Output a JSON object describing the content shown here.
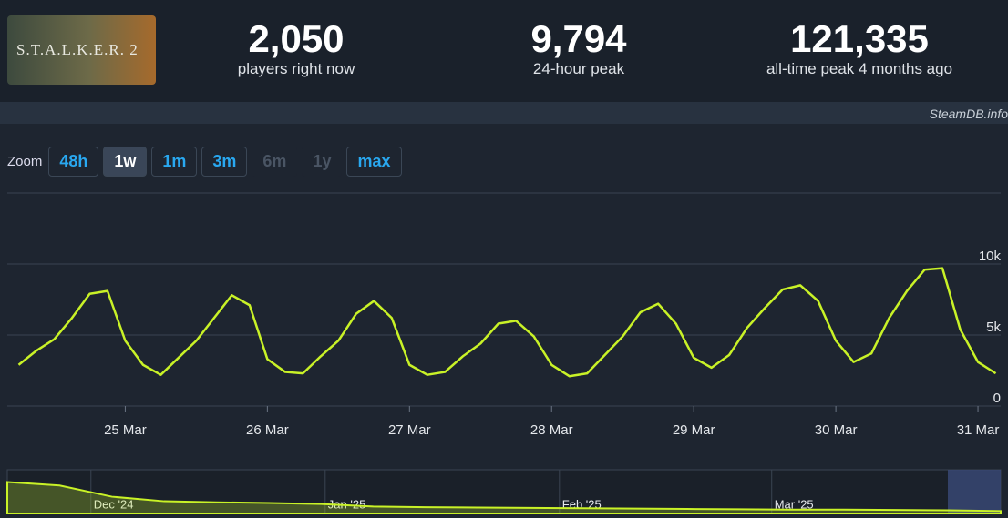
{
  "header": {
    "logo": "S.T.A.L.K.E.R. 2",
    "stats": [
      {
        "value": "2,050",
        "label": "players right now"
      },
      {
        "value": "9,794",
        "label": "24-hour peak"
      },
      {
        "value": "121,335",
        "label": "all-time peak 4 months ago"
      }
    ]
  },
  "watermark": "SteamDB.info",
  "zoom": {
    "label": "Zoom",
    "buttons": [
      "48h",
      "1w",
      "1m",
      "3m",
      "6m",
      "1y",
      "max"
    ],
    "active": "1w",
    "disabled": [
      "6m",
      "1y"
    ]
  },
  "chart_data": {
    "type": "line",
    "x": [
      24.25,
      24.375,
      24.5,
      24.625,
      24.75,
      24.875,
      25,
      25.125,
      25.25,
      25.375,
      25.5,
      25.625,
      25.75,
      25.875,
      26,
      26.125,
      26.25,
      26.375,
      26.5,
      26.625,
      26.75,
      26.875,
      27,
      27.125,
      27.25,
      27.375,
      27.5,
      27.625,
      27.75,
      27.875,
      28,
      28.125,
      28.25,
      28.375,
      28.5,
      28.625,
      28.75,
      28.875,
      29,
      29.125,
      29.25,
      29.375,
      29.5,
      29.625,
      29.75,
      29.875,
      30,
      30.125,
      30.25,
      30.375,
      30.5,
      30.625,
      30.75,
      30.875,
      31,
      31.125
    ],
    "series": [
      {
        "color": "#c9f227",
        "values": [
          2900,
          3900,
          4700,
          6200,
          7900,
          8100,
          4600,
          2900,
          2200,
          3400,
          4600,
          6200,
          7800,
          7100,
          3300,
          2400,
          2300,
          3500,
          4600,
          6500,
          7400,
          6200,
          2900,
          2200,
          2400,
          3500,
          4400,
          5800,
          6000,
          4900,
          2900,
          2100,
          2300,
          3600,
          4900,
          6600,
          7200,
          5800,
          3400,
          2700,
          3600,
          5500,
          6900,
          8200,
          8500,
          7400,
          4600,
          3100,
          3700,
          6200,
          8100,
          9600,
          9700,
          5400,
          3100,
          2300
        ]
      }
    ],
    "xlim": [
      24.17,
      31.16
    ],
    "xticks": [
      {
        "value": 25,
        "label": "25 Mar"
      },
      {
        "value": 26,
        "label": "26 Mar"
      },
      {
        "value": 27,
        "label": "27 Mar"
      },
      {
        "value": 28,
        "label": "28 Mar"
      },
      {
        "value": 29,
        "label": "29 Mar"
      },
      {
        "value": 30,
        "label": "30 Mar"
      },
      {
        "value": 31,
        "label": "31 Mar"
      }
    ],
    "ylim": [
      0,
      15000
    ],
    "yticks": [
      0,
      {
        "value": 5000,
        "label": "5k"
      },
      {
        "value": 10000,
        "label": "10k"
      }
    ],
    "grid": true
  },
  "navigator": {
    "type": "area",
    "color": "#c9f227",
    "values": [
      90000,
      80000,
      48000,
      35000,
      32000,
      30000,
      27000,
      20000,
      18000,
      17000,
      16000,
      15000,
      14000,
      13000,
      12000,
      11000,
      11000,
      10000,
      9000,
      7000
    ],
    "xlim": [
      0,
      19
    ],
    "ylim": [
      0,
      125000
    ],
    "xticks": [
      {
        "value": 1.6,
        "label": "Dec '24"
      },
      {
        "value": 6.08,
        "label": "Jan '25"
      },
      {
        "value": 10.56,
        "label": "Feb '25"
      },
      {
        "value": 14.62,
        "label": "Mar '25"
      }
    ]
  }
}
